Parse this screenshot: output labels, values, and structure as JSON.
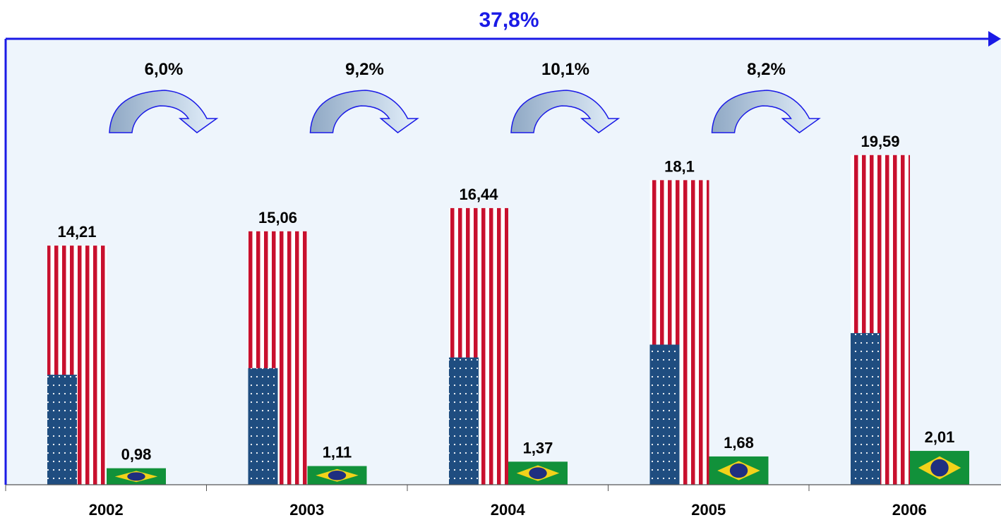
{
  "chart_data": {
    "type": "bar",
    "title": "",
    "xlabel": "",
    "ylabel": "",
    "ylim": [
      0,
      26.5
    ],
    "categories": [
      "2002",
      "2003",
      "2004",
      "2005",
      "2006"
    ],
    "series": [
      {
        "values": [
          14.21,
          15.06,
          16.44,
          18.1,
          19.59
        ],
        "value_labels": [
          "14,21",
          "15,06",
          "16,44",
          "18,1",
          "19,59"
        ],
        "pattern": "usa-flag"
      },
      {
        "values": [
          0.98,
          1.11,
          1.37,
          1.68,
          2.01
        ],
        "value_labels": [
          "0,98",
          "1,11",
          "1,37",
          "1,68",
          "2,01"
        ],
        "pattern": "brazil-flag"
      }
    ],
    "growth_labels": [
      "6,0%",
      "9,2%",
      "10,1%",
      "8,2%"
    ],
    "total_growth_label": "37,8%",
    "grid": false,
    "legend": "none",
    "colors": {
      "plot_background": "#eef5fc",
      "axis": "#1a1ae6",
      "usa_red": "#c8102e",
      "usa_blue": "#1f4d80",
      "brazil_green": "#11913a",
      "brazil_yellow": "#f2d21a",
      "brazil_globe": "#1f2f80",
      "growth_arrow": "#aac4e6",
      "total_label": "#1a1ae6"
    }
  }
}
